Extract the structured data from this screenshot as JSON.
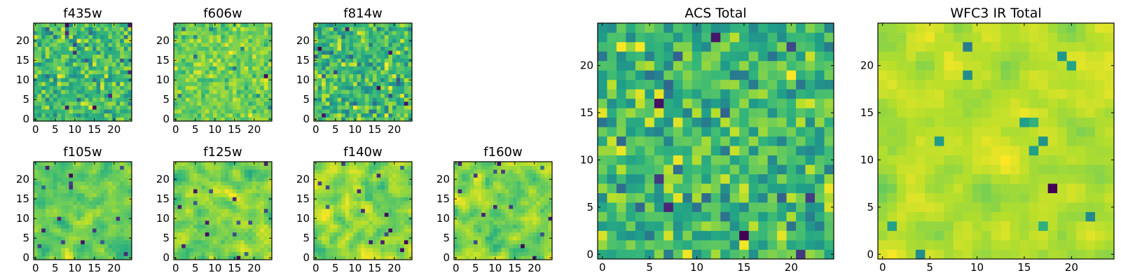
{
  "chart_data": [
    {
      "type": "heatmap",
      "title": "f435w",
      "xticks": [
        0,
        5,
        10,
        15,
        20
      ],
      "yticks": [
        0,
        5,
        10,
        15,
        20
      ],
      "xlim": [
        -0.5,
        24.5
      ],
      "ylim": [
        -0.5,
        24.5
      ],
      "grid_size": 25,
      "colormap": "viridis",
      "seed": 11,
      "smooth": 0
    },
    {
      "type": "heatmap",
      "title": "f606w",
      "xticks": [
        0,
        5,
        10,
        15,
        20
      ],
      "yticks": [
        0,
        5,
        10,
        15,
        20
      ],
      "xlim": [
        -0.5,
        24.5
      ],
      "ylim": [
        -0.5,
        24.5
      ],
      "grid_size": 25,
      "colormap": "viridis",
      "seed": 23,
      "smooth": 0
    },
    {
      "type": "heatmap",
      "title": "f814w",
      "xticks": [
        0,
        5,
        10,
        15,
        20
      ],
      "yticks": [
        0,
        5,
        10,
        15,
        20
      ],
      "xlim": [
        -0.5,
        24.5
      ],
      "ylim": [
        -0.5,
        24.5
      ],
      "grid_size": 25,
      "colormap": "viridis",
      "seed": 37,
      "smooth": 0
    },
    {
      "type": "heatmap",
      "title": "f105w",
      "xticks": [
        0,
        5,
        10,
        15,
        20
      ],
      "yticks": [
        0,
        5,
        10,
        15,
        20
      ],
      "xlim": [
        -0.5,
        24.5
      ],
      "ylim": [
        -0.5,
        24.5
      ],
      "grid_size": 25,
      "colormap": "viridis",
      "seed": 41,
      "smooth": 1
    },
    {
      "type": "heatmap",
      "title": "f125w",
      "xticks": [
        0,
        5,
        10,
        15,
        20
      ],
      "yticks": [
        0,
        5,
        10,
        15,
        20
      ],
      "xlim": [
        -0.5,
        24.5
      ],
      "ylim": [
        -0.5,
        24.5
      ],
      "grid_size": 25,
      "colormap": "viridis",
      "seed": 53,
      "smooth": 1
    },
    {
      "type": "heatmap",
      "title": "f140w",
      "xticks": [
        0,
        5,
        10,
        15,
        20
      ],
      "yticks": [
        0,
        5,
        10,
        15,
        20
      ],
      "xlim": [
        -0.5,
        24.5
      ],
      "ylim": [
        -0.5,
        24.5
      ],
      "grid_size": 25,
      "colormap": "viridis",
      "seed": 67,
      "smooth": 1
    },
    {
      "type": "heatmap",
      "title": "f160w",
      "xticks": [
        0,
        5,
        10,
        15,
        20
      ],
      "yticks": [
        0,
        5,
        10,
        15,
        20
      ],
      "xlim": [
        -0.5,
        24.5
      ],
      "ylim": [
        -0.5,
        24.5
      ],
      "grid_size": 25,
      "colormap": "viridis",
      "seed": 71,
      "smooth": 1
    },
    {
      "type": "heatmap",
      "title": "ACS Total",
      "xticks": [
        0,
        5,
        10,
        15,
        20
      ],
      "yticks": [
        0,
        5,
        10,
        15,
        20
      ],
      "xlim": [
        -0.5,
        24.5
      ],
      "ylim": [
        -0.5,
        24.5
      ],
      "grid_size": 25,
      "colormap": "viridis",
      "seed": 83,
      "smooth": 0
    },
    {
      "type": "heatmap",
      "title": "WFC3 IR Total",
      "xticks": [
        0,
        5,
        10,
        15,
        20
      ],
      "yticks": [
        0,
        5,
        10,
        15,
        20
      ],
      "xlim": [
        -0.5,
        24.5
      ],
      "ylim": [
        -0.5,
        24.5
      ],
      "grid_size": 25,
      "colormap": "viridis",
      "seed": 97,
      "smooth": 1
    }
  ]
}
